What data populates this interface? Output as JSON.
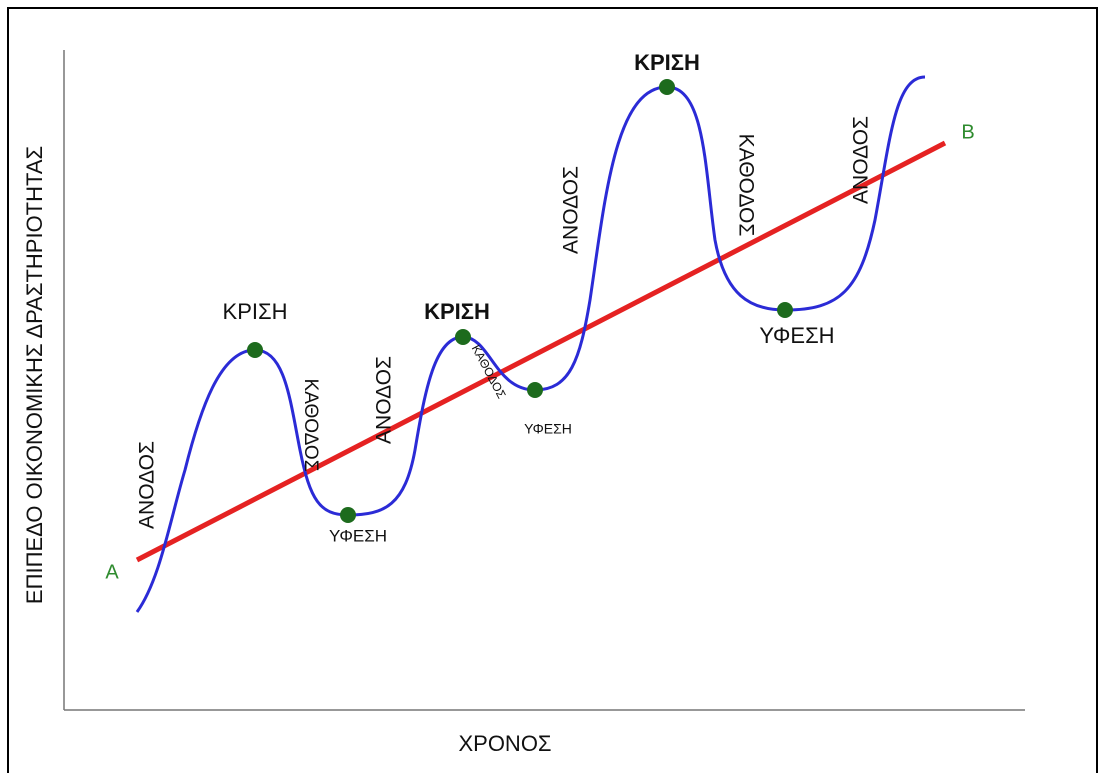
{
  "axes": {
    "y_label": "ΕΠΙΠΕΔΟ ΟΙΚΟΝΟΜΙΚΗΣ ΔΡΑΣΤΗΡΙΟΤΗΤΑΣ",
    "x_label": "ΧΡΟΝΟΣ"
  },
  "trend": {
    "start_label": "A",
    "end_label": "B"
  },
  "labels": [
    "ΚΡΙΣΗ",
    "ΚΡΙΣΗ",
    "ΚΡΙΣΗ",
    "ΥΦΕΣΗ",
    "ΥΦΕΣΗ",
    "ΥΦΕΣΗ",
    "ΑΝΟΔΟΣ",
    "ΑΝΟΔΟΣ",
    "ΑΝΟΔΟΣ",
    "ΑΝΟΔΟΣ",
    "ΚΑΘΟΔΟΣ",
    "ΚΑΘΟΔΟΣ",
    "ΚΑΘΟΔΟΣ"
  ]
}
